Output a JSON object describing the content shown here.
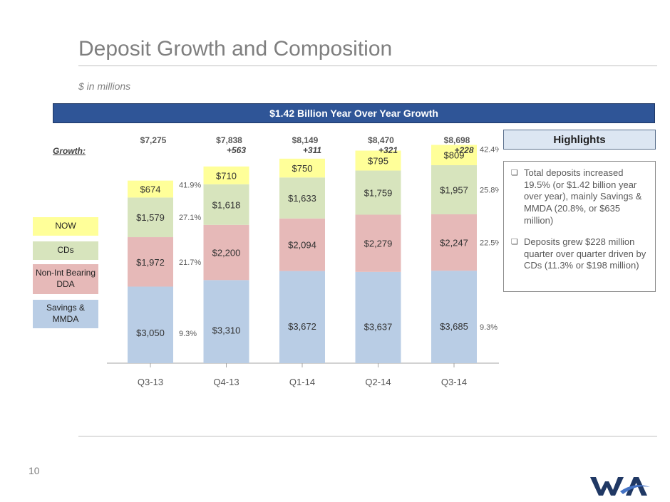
{
  "header": {
    "title": "Deposit Growth and Composition",
    "subtitle": "$ in millions",
    "banner": "$1.42 Billion Year Over Year Growth"
  },
  "growth_label": "Growth:",
  "legend": {
    "now": "NOW",
    "cds": "CDs",
    "nonint": "Non-Int Bearing DDA",
    "savings": "Savings & MMDA"
  },
  "highlights": {
    "title": "Highlights",
    "items": [
      "Total deposits increased 19.5% (or $1.42 billion year over year), mainly Savings & MMDA (20.8%, or $635 million)",
      "Deposits grew $228 million quarter over quarter driven by CDs (11.3% or $198 million)"
    ]
  },
  "footer": {
    "page_number": "10"
  },
  "colors": {
    "savings": "#b9cde5",
    "nonint": "#e6b9b8",
    "cds": "#d7e4bd",
    "now": "#ffff99",
    "banner": "#2f5597"
  },
  "chart_data": {
    "type": "bar",
    "stacked": true,
    "categories": [
      "Q3-13",
      "Q4-13",
      "Q1-14",
      "Q2-14",
      "Q3-14"
    ],
    "series": [
      {
        "name": "Savings & MMDA",
        "key": "savings",
        "values": [
          3050,
          3310,
          3672,
          3637,
          3685
        ],
        "labels": [
          "$3,050",
          "$3,310",
          "$3,672",
          "$3,637",
          "$3,685"
        ]
      },
      {
        "name": "Non-Int Bearing DDA",
        "key": "nonint",
        "values": [
          1972,
          2200,
          2094,
          2279,
          2247
        ],
        "labels": [
          "$1,972",
          "$2,200",
          "$2,094",
          "$2,279",
          "$2,247"
        ]
      },
      {
        "name": "CDs",
        "key": "cds",
        "values": [
          1579,
          1618,
          1633,
          1759,
          1957
        ],
        "labels": [
          "$1,579",
          "$1,618",
          "$1,633",
          "$1,759",
          "$1,957"
        ]
      },
      {
        "name": "NOW",
        "key": "now",
        "values": [
          674,
          710,
          750,
          795,
          809
        ],
        "labels": [
          "$674",
          "$710",
          "$750",
          "$795",
          "$809"
        ]
      }
    ],
    "totals": [
      "$7,275",
      "$7,838",
      "$8,149",
      "$8,470",
      "$8,698"
    ],
    "growth": [
      "",
      "+563",
      "+311",
      "+321",
      "+228"
    ],
    "pct_first": [
      "41.9%",
      "27.1%",
      "21.7%",
      "9.3%"
    ],
    "pct_last": [
      "42.4%",
      "25.8%",
      "22.5%",
      "9.3%"
    ],
    "ylim": [
      0,
      9000
    ]
  }
}
